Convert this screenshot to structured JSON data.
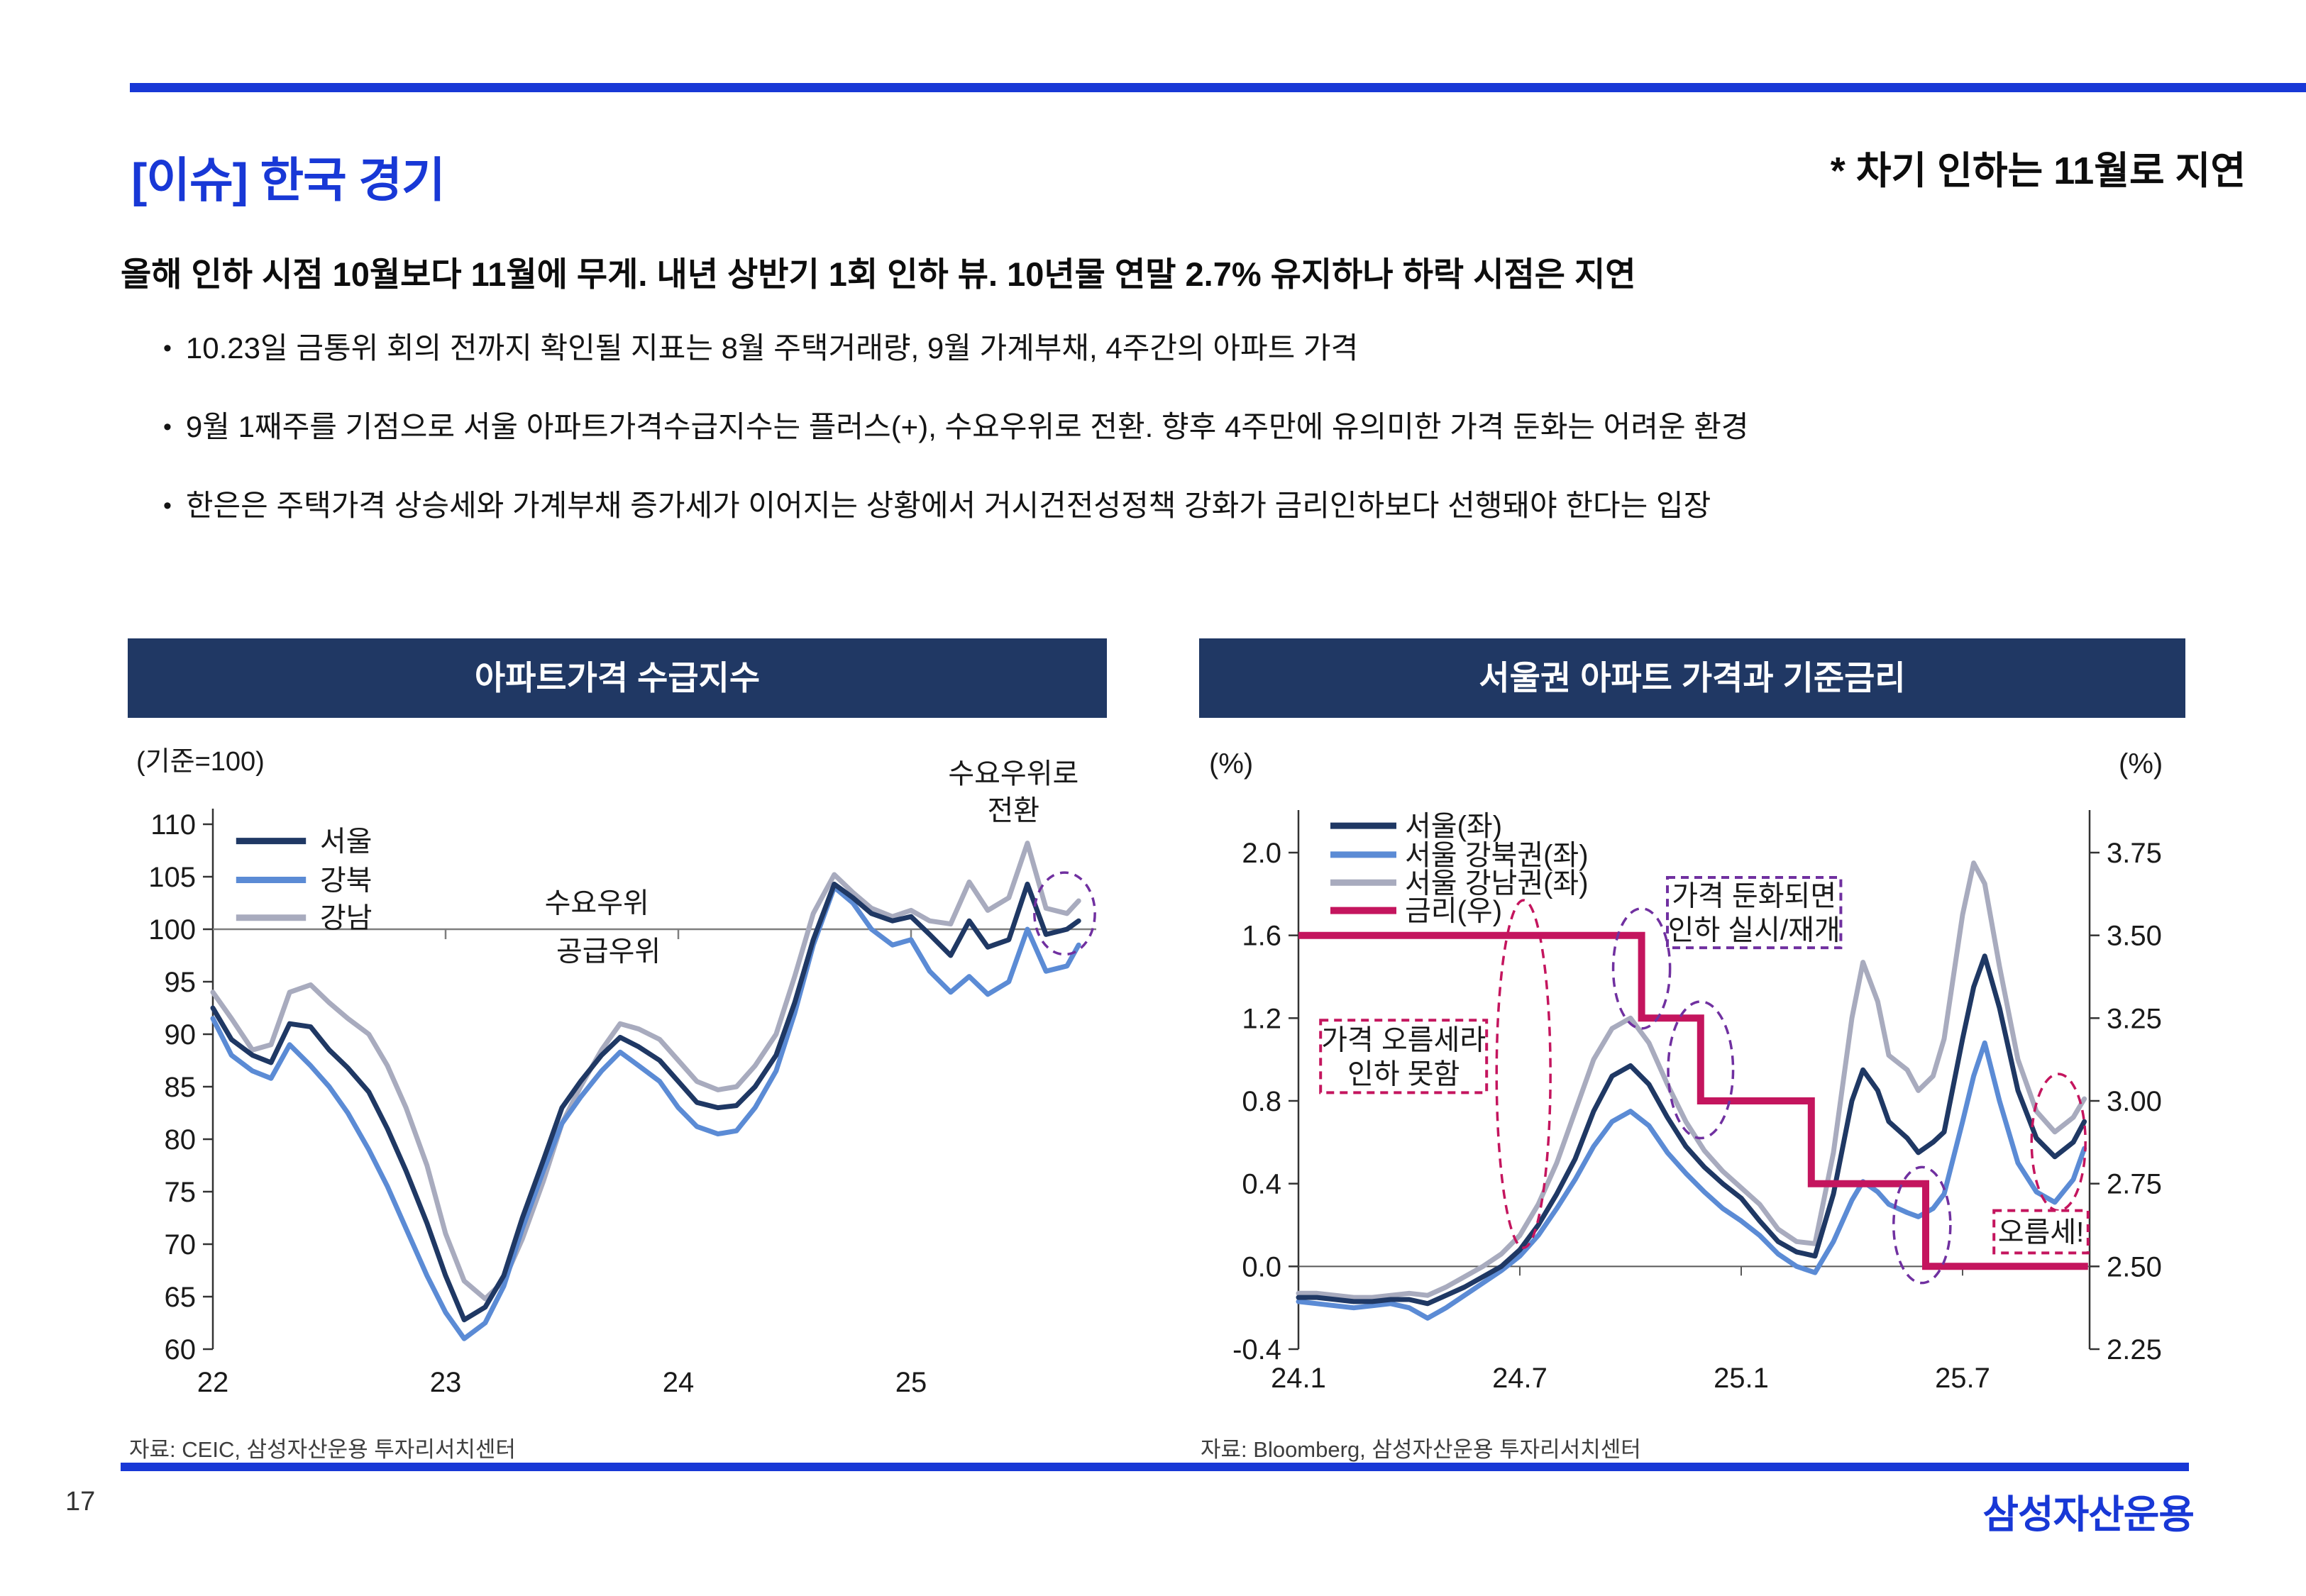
{
  "slide": {
    "title": "[이슈] 한국 경기",
    "title_note": "* 차기 인하는 11월로 지연",
    "headline": "올해 인하 시점 10월보다 11월에 무게. 내년 상반기 1회 인하 뷰. 10년물 연말 2.7% 유지하나 하락 시점은 지연",
    "bullets": [
      "10.23일 금통위 회의 전까지 확인될 지표는 8월 주택거래량, 9월 가계부채, 4주간의 아파트 가격",
      "9월 1째주를 기점으로 서울 아파트가격수급지수는 플러스(+), 수요우위로 전환. 향후 4주만에 유의미한 가격 둔화는 어려운 환경",
      "한은은 주택가격 상승세와 가계부채 증가세가 이어지는 상황에서 거시건전성정책 강화가 금리인하보다 선행돼야 한다는 입장"
    ],
    "page_number": "17",
    "logo": "삼성자산운용",
    "colors": {
      "brand_blue": "#1838d6",
      "header_navy": "#203864",
      "seoul_navy": "#1f3864",
      "gangbuk_blue": "#5b8bd5",
      "gangnam_gray": "#a8abbe",
      "rate_crimson": "#c4155e",
      "annotation_purple": "#7030a0"
    }
  },
  "chart_data": [
    {
      "type": "line",
      "title": "아파트가격 수급지수",
      "unit_label": "(기준=100)",
      "source": "자료: CEIC, 삼성자산운용 투자리서치센터",
      "ylim": [
        60,
        110
      ],
      "yticks": [
        110,
        105,
        100,
        95,
        90,
        85,
        80,
        75,
        70,
        65,
        60
      ],
      "xticks": [
        22,
        23,
        24,
        25
      ],
      "xtick_marks": [
        23,
        24,
        25
      ],
      "baseline": 100,
      "x": [
        22.0,
        22.08,
        22.17,
        22.25,
        22.33,
        22.42,
        22.5,
        22.58,
        22.67,
        22.75,
        22.83,
        22.92,
        23.0,
        23.08,
        23.17,
        23.25,
        23.33,
        23.42,
        23.5,
        23.58,
        23.67,
        23.75,
        23.83,
        23.92,
        24.0,
        24.08,
        24.17,
        24.25,
        24.33,
        24.42,
        24.5,
        24.58,
        24.67,
        24.75,
        24.83,
        24.92,
        25.0,
        25.08,
        25.17,
        25.25,
        25.33,
        25.42,
        25.5,
        25.58,
        25.67,
        25.72
      ],
      "series": [
        {
          "name": "서울",
          "color_key": "seoul_navy",
          "values": [
            92.5,
            89.5,
            88.0,
            87.3,
            91.0,
            90.7,
            88.5,
            86.8,
            84.5,
            81.0,
            77.0,
            72.0,
            67.0,
            62.8,
            64.0,
            67.0,
            72.5,
            78.0,
            83.0,
            85.5,
            88.0,
            89.7,
            88.8,
            87.5,
            85.5,
            83.5,
            83.0,
            83.2,
            85.0,
            88.0,
            93.0,
            99.0,
            104.3,
            103.0,
            101.5,
            100.8,
            101.2,
            99.5,
            97.5,
            100.8,
            98.3,
            99.0,
            104.3,
            99.5,
            100.0,
            100.8
          ]
        },
        {
          "name": "강북",
          "color_key": "gangbuk_blue",
          "values": [
            91.5,
            88.0,
            86.5,
            85.8,
            89.0,
            87.0,
            85.0,
            82.5,
            79.0,
            75.5,
            71.5,
            67.0,
            63.5,
            61.0,
            62.5,
            66.0,
            71.5,
            77.0,
            81.5,
            84.0,
            86.5,
            88.3,
            87.0,
            85.5,
            83.0,
            81.2,
            80.5,
            80.8,
            83.0,
            86.5,
            92.0,
            98.5,
            104.0,
            102.5,
            100.0,
            98.5,
            99.0,
            96.0,
            94.0,
            95.5,
            93.8,
            95.0,
            100.0,
            96.0,
            96.5,
            98.5
          ]
        },
        {
          "name": "강남",
          "color_key": "gangnam_gray",
          "values": [
            94.0,
            91.5,
            88.5,
            89.0,
            94.0,
            94.7,
            93.0,
            91.5,
            90.0,
            87.0,
            83.0,
            77.5,
            71.0,
            66.5,
            64.8,
            66.5,
            70.5,
            76.0,
            81.5,
            85.0,
            88.5,
            91.0,
            90.5,
            89.5,
            87.5,
            85.5,
            84.7,
            85.0,
            87.0,
            90.0,
            95.5,
            101.5,
            105.2,
            103.5,
            102.0,
            101.2,
            101.8,
            100.8,
            100.5,
            104.5,
            101.8,
            103.0,
            108.2,
            102.0,
            101.5,
            102.7
          ]
        }
      ],
      "annotations": {
        "above_line": "수요우위",
        "below_line": "공급우위",
        "transition": [
          "수요우위로",
          "전환"
        ],
        "ellipse": {
          "cx": 25.66,
          "cy": 101.5,
          "rx": 0.13,
          "ry": 3.9,
          "color_key": "annotation_purple"
        }
      }
    },
    {
      "type": "line+step",
      "title": "서울권 아파트 가격과 기준금리",
      "unit_left": "(%)",
      "unit_right": "(%)",
      "source": "자료: Bloomberg, 삼성자산운용 투자리서치센터",
      "ylim_left": [
        -0.4,
        2.0
      ],
      "yticks_left": [
        2.0,
        1.6,
        1.2,
        0.8,
        0.4,
        0.0,
        -0.4
      ],
      "ylim_right": [
        2.25,
        3.75
      ],
      "yticks_right": [
        3.75,
        3.5,
        3.25,
        3.0,
        2.75,
        2.5,
        2.25
      ],
      "xticks": [
        {
          "m": 0,
          "label": "24.1"
        },
        {
          "m": 6,
          "label": "24.7"
        },
        {
          "m": 12,
          "label": "25.1"
        },
        {
          "m": 18,
          "label": "25.7"
        }
      ],
      "x_months": [
        0,
        0.5,
        1,
        1.5,
        2,
        2.5,
        3,
        3.5,
        4,
        4.5,
        5,
        5.5,
        6,
        6.5,
        7,
        7.5,
        8,
        8.5,
        9,
        9.5,
        10,
        10.5,
        11,
        11.5,
        12,
        12.5,
        13,
        13.5,
        14,
        14.5,
        15,
        15.3,
        15.7,
        16,
        16.5,
        16.8,
        17.2,
        17.5,
        18,
        18.3,
        18.6,
        19,
        19.5,
        20,
        20.5,
        21,
        21.3
      ],
      "series": [
        {
          "name": "서울(좌)",
          "color_key": "seoul_navy",
          "values": [
            -0.15,
            -0.15,
            -0.16,
            -0.17,
            -0.17,
            -0.16,
            -0.16,
            -0.18,
            -0.14,
            -0.1,
            -0.05,
            0.0,
            0.08,
            0.2,
            0.35,
            0.52,
            0.75,
            0.92,
            0.97,
            0.88,
            0.72,
            0.58,
            0.48,
            0.4,
            0.33,
            0.22,
            0.12,
            0.07,
            0.05,
            0.35,
            0.8,
            0.95,
            0.85,
            0.7,
            0.62,
            0.55,
            0.6,
            0.65,
            1.1,
            1.35,
            1.5,
            1.25,
            0.85,
            0.62,
            0.53,
            0.6,
            0.7
          ]
        },
        {
          "name": "서울 강북권(좌)",
          "color_key": "gangbuk_blue",
          "values": [
            -0.17,
            -0.18,
            -0.19,
            -0.2,
            -0.19,
            -0.18,
            -0.2,
            -0.25,
            -0.2,
            -0.14,
            -0.08,
            -0.02,
            0.05,
            0.15,
            0.28,
            0.42,
            0.58,
            0.7,
            0.75,
            0.68,
            0.55,
            0.45,
            0.36,
            0.28,
            0.22,
            0.15,
            0.06,
            0.0,
            -0.03,
            0.12,
            0.32,
            0.41,
            0.36,
            0.3,
            0.26,
            0.24,
            0.28,
            0.35,
            0.7,
            0.92,
            1.08,
            0.8,
            0.5,
            0.36,
            0.31,
            0.42,
            0.57
          ]
        },
        {
          "name": "서울 강남권(좌)",
          "color_key": "gangnam_gray",
          "values": [
            -0.13,
            -0.13,
            -0.14,
            -0.15,
            -0.15,
            -0.14,
            -0.13,
            -0.14,
            -0.1,
            -0.05,
            0.0,
            0.06,
            0.15,
            0.3,
            0.5,
            0.75,
            1.0,
            1.15,
            1.2,
            1.08,
            0.88,
            0.7,
            0.56,
            0.46,
            0.38,
            0.3,
            0.18,
            0.12,
            0.11,
            0.55,
            1.2,
            1.47,
            1.28,
            1.02,
            0.95,
            0.85,
            0.92,
            1.1,
            1.7,
            1.95,
            1.85,
            1.45,
            1.0,
            0.75,
            0.65,
            0.72,
            0.81
          ]
        }
      ],
      "rate_series": {
        "name": "금리(우)",
        "color_key": "rate_crimson",
        "axis": "right",
        "points": [
          [
            0,
            3.5
          ],
          [
            9.3,
            3.5
          ],
          [
            9.3,
            3.25
          ],
          [
            10.9,
            3.25
          ],
          [
            10.9,
            3.0
          ],
          [
            13.9,
            3.0
          ],
          [
            13.9,
            2.75
          ],
          [
            17.0,
            2.75
          ],
          [
            17.0,
            2.5
          ],
          [
            21.4,
            2.5
          ]
        ]
      },
      "annotations": {
        "boxes": [
          {
            "text": [
              "가격 오름세라",
              "인하 못함"
            ],
            "x1": 0.6,
            "x2": 5.1,
            "y1": 0.84,
            "y2": 1.19,
            "color_key": "rate_crimson"
          },
          {
            "text": [
              "가격 둔화되면",
              "인하 실시/재개"
            ],
            "x1": 10.0,
            "x2": 14.7,
            "y1": 1.54,
            "y2": 1.88,
            "color_key": "annotation_purple"
          },
          {
            "text": [
              "오름세!"
            ],
            "x1": 18.85,
            "x2": 21.4,
            "y1": 0.065,
            "y2": 0.27,
            "color_key": "rate_crimson"
          }
        ],
        "ellipses": [
          {
            "cx": 6.1,
            "cy": 0.93,
            "rx": 0.73,
            "ry": 0.84,
            "color_key": "rate_crimson"
          },
          {
            "cx": 9.3,
            "cy": 1.44,
            "rx": 0.77,
            "ry": 0.29,
            "color_key": "annotation_purple"
          },
          {
            "cx": 10.9,
            "cy": 0.95,
            "rx": 0.88,
            "ry": 0.33,
            "color_key": "annotation_purple"
          },
          {
            "cx": 16.9,
            "cy": 0.2,
            "rx": 0.77,
            "ry": 0.28,
            "color_key": "annotation_purple"
          },
          {
            "cx": 20.6,
            "cy": 0.6,
            "rx": 0.73,
            "ry": 0.33,
            "color_key": "rate_crimson"
          }
        ]
      }
    }
  ]
}
